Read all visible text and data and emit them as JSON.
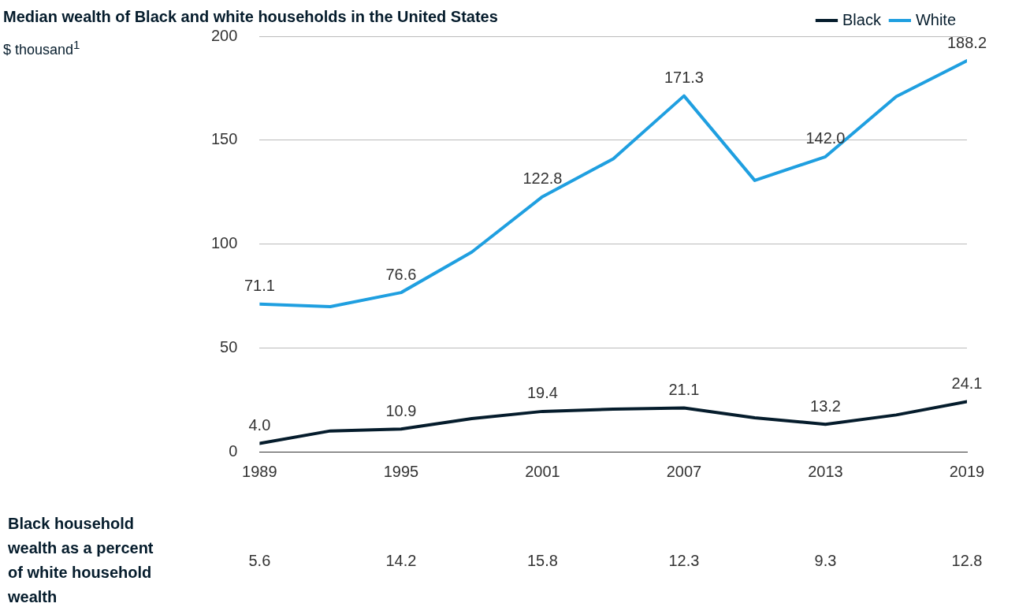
{
  "chart_data": {
    "type": "line",
    "title": "Median wealth of Black and white households in the United States",
    "subtitle": "$ thousand$^{1}$",
    "x": [
      1989,
      1992,
      1995,
      1998,
      2001,
      2004,
      2007,
      2010,
      2013,
      2016,
      2019
    ],
    "series": [
      {
        "name": "Black",
        "color": "#051c2c",
        "values": [
          4.0,
          10.0,
          10.9,
          15.9,
          19.4,
          20.5,
          21.1,
          16.3,
          13.2,
          17.7,
          24.1
        ],
        "value_labels": [
          "4.0",
          null,
          "10.9",
          null,
          "19.4",
          null,
          "21.1",
          null,
          "13.2",
          null,
          "24.1"
        ]
      },
      {
        "name": "White",
        "color": "#1f9fe0",
        "values": [
          71.1,
          69.8,
          76.6,
          96.1,
          122.8,
          141.0,
          171.3,
          130.6,
          142.0,
          171.0,
          188.2
        ],
        "value_labels": [
          "71.1",
          null,
          "76.6",
          null,
          "122.8",
          null,
          "171.3",
          null,
          "142.0",
          null,
          "188.2"
        ]
      }
    ],
    "xlim": [
      1989,
      2019
    ],
    "xticks": [
      1989,
      1995,
      2001,
      2007,
      2013,
      2019
    ],
    "ylim": [
      0,
      200
    ],
    "yticks": [
      0,
      50,
      100,
      150,
      200
    ],
    "grid": "y",
    "legend": "top right",
    "marker": "none",
    "line_style": "solid",
    "annotations": [
      "Black household wealth as a percent of white household wealth",
      "5.6",
      "14.2",
      "15.8",
      "12.3",
      "9.3",
      "12.8"
    ]
  }
}
